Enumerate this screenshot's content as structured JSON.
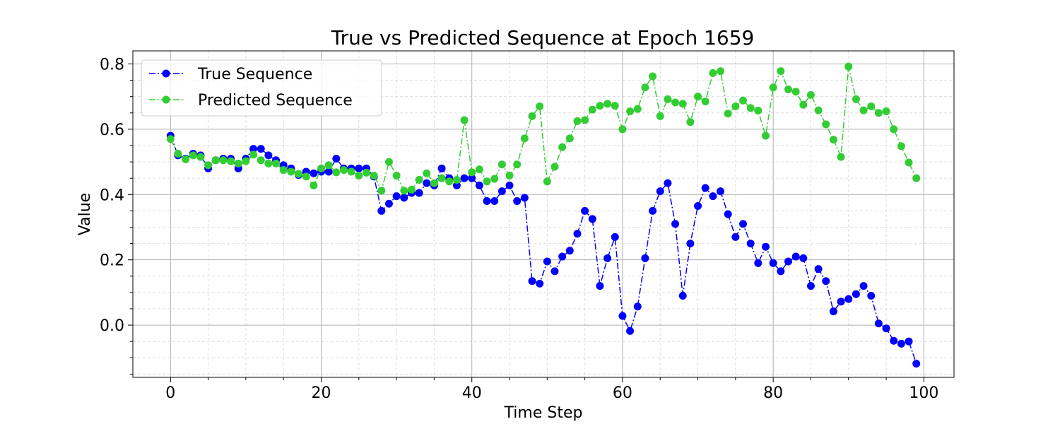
{
  "chart_data": {
    "type": "line",
    "title": "True vs Predicted Sequence at Epoch 1659",
    "xlabel": "Time Step",
    "ylabel": "Value",
    "xlim": [
      -5,
      104
    ],
    "ylim": [
      -0.16,
      0.84
    ],
    "xticks": [
      0,
      20,
      40,
      60,
      80,
      100
    ],
    "yticks": [
      0.0,
      0.2,
      0.4,
      0.6,
      0.8
    ],
    "grid": true,
    "legend_position": "top-left",
    "series": [
      {
        "name": "True Sequence",
        "color": "#0000ff",
        "marker": "circle",
        "line_style": "dash-dot",
        "values": [
          0.58,
          0.52,
          0.51,
          0.525,
          0.52,
          0.48,
          0.505,
          0.51,
          0.51,
          0.48,
          0.51,
          0.54,
          0.54,
          0.52,
          0.505,
          0.49,
          0.48,
          0.46,
          0.47,
          0.465,
          0.47,
          0.47,
          0.51,
          0.48,
          0.48,
          0.48,
          0.48,
          0.455,
          0.35,
          0.372,
          0.395,
          0.39,
          0.405,
          0.405,
          0.435,
          0.428,
          0.48,
          0.45,
          0.428,
          0.45,
          0.45,
          0.428,
          0.38,
          0.38,
          0.41,
          0.428,
          0.38,
          0.39,
          0.135,
          0.127,
          0.195,
          0.165,
          0.21,
          0.228,
          0.28,
          0.35,
          0.325,
          0.12,
          0.205,
          0.27,
          0.028,
          -0.018,
          0.057,
          0.205,
          0.35,
          0.41,
          0.435,
          0.31,
          0.09,
          0.25,
          0.365,
          0.42,
          0.395,
          0.41,
          0.34,
          0.27,
          0.31,
          0.25,
          0.19,
          0.24,
          0.19,
          0.165,
          0.195,
          0.21,
          0.205,
          0.12,
          0.172,
          0.135,
          0.042,
          0.072,
          0.08,
          0.095,
          0.12,
          0.09,
          0.005,
          -0.01,
          -0.048,
          -0.057,
          -0.05,
          -0.118
        ]
      },
      {
        "name": "Predicted Sequence",
        "color": "#32cd32",
        "marker": "circle",
        "line_style": "dash-dot",
        "values": [
          0.57,
          0.525,
          0.508,
          0.52,
          0.515,
          0.49,
          0.505,
          0.505,
          0.502,
          0.495,
          0.502,
          0.522,
          0.505,
          0.495,
          0.495,
          0.475,
          0.47,
          0.463,
          0.455,
          0.428,
          0.48,
          0.49,
          0.468,
          0.475,
          0.47,
          0.458,
          0.467,
          0.458,
          0.412,
          0.5,
          0.458,
          0.412,
          0.415,
          0.445,
          0.465,
          0.435,
          0.45,
          0.44,
          0.445,
          0.628,
          0.468,
          0.477,
          0.44,
          0.448,
          0.492,
          0.458,
          0.492,
          0.572,
          0.64,
          0.67,
          0.44,
          0.485,
          0.545,
          0.572,
          0.625,
          0.628,
          0.66,
          0.672,
          0.678,
          0.672,
          0.6,
          0.655,
          0.662,
          0.728,
          0.762,
          0.64,
          0.692,
          0.682,
          0.678,
          0.622,
          0.7,
          0.685,
          0.772,
          0.778,
          0.648,
          0.67,
          0.688,
          0.665,
          0.657,
          0.58,
          0.728,
          0.778,
          0.722,
          0.715,
          0.675,
          0.705,
          0.658,
          0.615,
          0.568,
          0.515,
          0.792,
          0.692,
          0.658,
          0.67,
          0.65,
          0.655,
          0.6,
          0.548,
          0.498,
          0.45
        ]
      }
    ]
  }
}
